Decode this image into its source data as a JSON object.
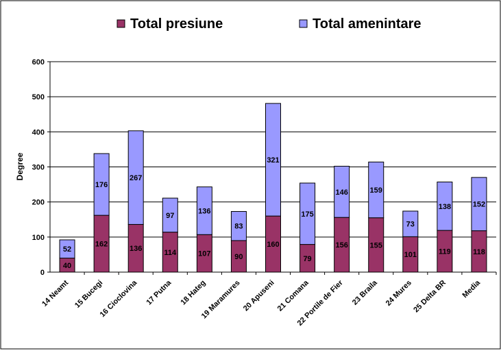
{
  "chart_data": {
    "type": "bar",
    "stacked": true,
    "title": "",
    "xlabel": "",
    "ylabel": "Degree",
    "ylim": [
      0,
      600
    ],
    "yticks": [
      0,
      100,
      200,
      300,
      400,
      500,
      600
    ],
    "grid": true,
    "legend_position": "top",
    "categories": [
      "14 Neamt",
      "15 Bucegi",
      "16 Cioclovina",
      "17 Putna",
      "18 Hateg",
      "19 Maramures",
      "20 Apuseni",
      "21 Comana",
      "22 Portile de Fier",
      "23 Braila",
      "24 Mures",
      "25 Delta BR",
      "Media"
    ],
    "series": [
      {
        "name": "Total presiune",
        "color": "#993366",
        "values": [
          40,
          162,
          136,
          114,
          107,
          90,
          160,
          79,
          156,
          155,
          101,
          119,
          118
        ]
      },
      {
        "name": "Total amenintare",
        "color": "#9999FF",
        "values": [
          52,
          176,
          267,
          97,
          136,
          83,
          321,
          175,
          146,
          159,
          73,
          138,
          152
        ]
      }
    ]
  }
}
